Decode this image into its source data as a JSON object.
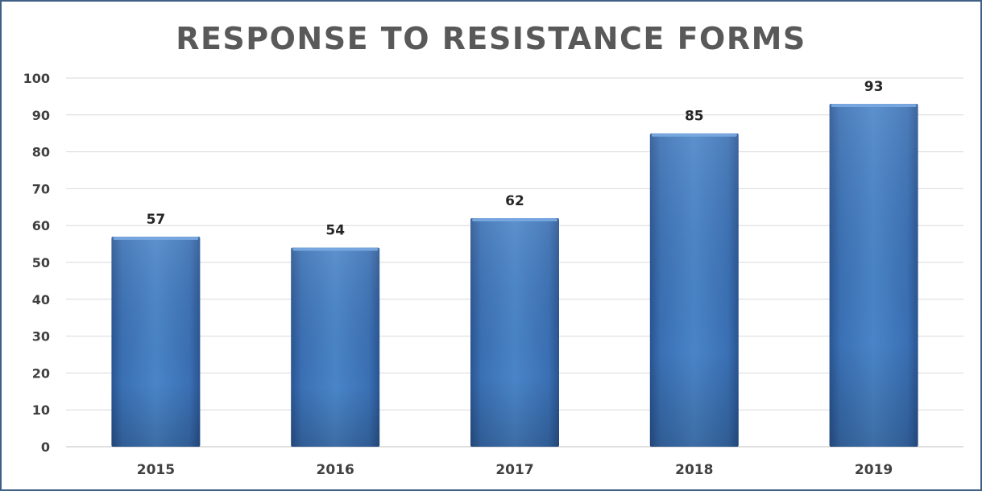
{
  "chart_data": {
    "type": "bar",
    "title": "RESPONSE TO RESISTANCE FORMS",
    "xlabel": "",
    "ylabel": "",
    "categories": [
      "2015",
      "2016",
      "2017",
      "2018",
      "2019"
    ],
    "values": [
      57,
      54,
      62,
      85,
      93
    ],
    "data_labels": [
      "57",
      "54",
      "62",
      "85",
      "93"
    ],
    "y_ticks": [
      "0",
      "10",
      "20",
      "30",
      "40",
      "50",
      "60",
      "70",
      "80",
      "90",
      "100"
    ],
    "ylim": [
      0,
      100
    ],
    "grid": true,
    "legend": "none",
    "colors": {
      "bar": "#3f78bd",
      "bar_dark": "#2a5592",
      "grid": "#d9d9d9",
      "frame": "#3f5f86",
      "title": "#595959"
    }
  }
}
